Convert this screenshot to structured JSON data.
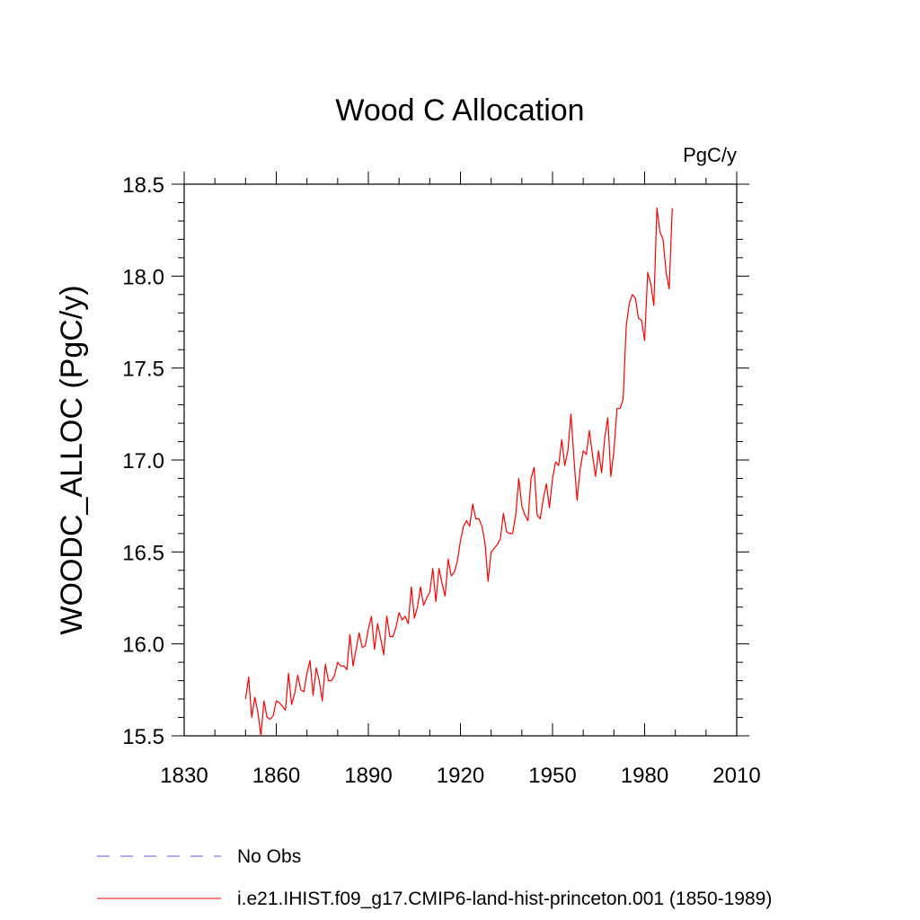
{
  "chart_data": {
    "type": "line",
    "title": "Wood C Allocation",
    "units_label": "PgC/y",
    "xlabel": "",
    "ylabel": "WOODC_ALLOC  (PgC/y)",
    "xlim": [
      1830,
      2010
    ],
    "ylim": [
      15.5,
      18.5
    ],
    "xticks": [
      1830,
      1860,
      1890,
      1920,
      1950,
      1980,
      2010
    ],
    "yticks": [
      15.5,
      16.0,
      16.5,
      17.0,
      17.5,
      18.0,
      18.5
    ],
    "ytick_labels": [
      "15.5",
      "16.0",
      "16.5",
      "17.0",
      "17.5",
      "18.0",
      "18.5"
    ],
    "grid": false,
    "legend_position": "bottom",
    "legend": [
      {
        "label": "No Obs",
        "color": "#6a5acd",
        "style": "dashed"
      },
      {
        "label": "i.e21.IHIST.f09_g17.CMIP6-land-hist-princeton.001 (1850-1989)",
        "color": "#ff0000",
        "style": "solid"
      }
    ],
    "series": [
      {
        "name": "i.e21.IHIST.f09_g17.CMIP6-land-hist-princeton.001 (1850-1989)",
        "color": "#ff0000",
        "x": [
          1850,
          1851,
          1852,
          1853,
          1854,
          1855,
          1856,
          1857,
          1858,
          1859,
          1860,
          1861,
          1862,
          1863,
          1864,
          1865,
          1866,
          1867,
          1868,
          1869,
          1870,
          1871,
          1872,
          1873,
          1874,
          1875,
          1876,
          1877,
          1878,
          1879,
          1880,
          1881,
          1882,
          1883,
          1884,
          1885,
          1886,
          1887,
          1888,
          1889,
          1890,
          1891,
          1892,
          1893,
          1894,
          1895,
          1896,
          1897,
          1898,
          1899,
          1900,
          1901,
          1902,
          1903,
          1904,
          1905,
          1906,
          1907,
          1908,
          1909,
          1910,
          1911,
          1912,
          1913,
          1914,
          1915,
          1916,
          1917,
          1918,
          1919,
          1920,
          1921,
          1922,
          1923,
          1924,
          1925,
          1926,
          1927,
          1928,
          1929,
          1930,
          1931,
          1932,
          1933,
          1934,
          1935,
          1936,
          1937,
          1938,
          1939,
          1940,
          1941,
          1942,
          1943,
          1944,
          1945,
          1946,
          1947,
          1948,
          1949,
          1950,
          1951,
          1952,
          1953,
          1954,
          1955,
          1956,
          1957,
          1958,
          1959,
          1960,
          1961,
          1962,
          1963,
          1964,
          1965,
          1966,
          1967,
          1968,
          1969,
          1970,
          1971,
          1972,
          1973,
          1974,
          1975,
          1976,
          1977,
          1978,
          1979,
          1980,
          1981,
          1982,
          1983,
          1984,
          1985,
          1986,
          1987,
          1988,
          1989
        ],
        "y": [
          15.7,
          15.82,
          15.6,
          15.71,
          15.63,
          15.5,
          15.69,
          15.6,
          15.59,
          15.61,
          15.69,
          15.68,
          15.66,
          15.64,
          15.84,
          15.67,
          15.73,
          15.83,
          15.75,
          15.74,
          15.84,
          15.91,
          15.72,
          15.87,
          15.8,
          15.69,
          15.89,
          15.8,
          15.8,
          15.83,
          15.9,
          15.88,
          15.88,
          15.86,
          16.05,
          15.88,
          15.97,
          16.06,
          15.98,
          15.99,
          16.08,
          16.15,
          15.97,
          16.11,
          16.03,
          15.94,
          16.15,
          16.04,
          16.04,
          16.09,
          16.17,
          16.13,
          16.15,
          16.11,
          16.31,
          16.14,
          16.2,
          16.31,
          16.21,
          16.25,
          16.28,
          16.41,
          16.23,
          16.41,
          16.33,
          16.26,
          16.46,
          16.37,
          16.39,
          16.45,
          16.56,
          16.64,
          16.67,
          16.64,
          16.76,
          16.68,
          16.68,
          16.64,
          16.55,
          16.34,
          16.5,
          16.52,
          16.54,
          16.57,
          16.71,
          16.61,
          16.6,
          16.6,
          16.7,
          16.9,
          16.75,
          16.7,
          16.67,
          16.9,
          16.96,
          16.7,
          16.68,
          16.79,
          16.87,
          16.74,
          16.9,
          16.99,
          16.97,
          17.11,
          16.97,
          17.05,
          17.25,
          17.0,
          16.78,
          16.95,
          17.05,
          17.03,
          17.16,
          17.03,
          16.91,
          17.05,
          16.93,
          17.12,
          17.23,
          16.91,
          17.05,
          17.28,
          17.28,
          17.33,
          17.73,
          17.85,
          17.9,
          17.88,
          17.77,
          17.76,
          17.65,
          18.02,
          17.96,
          17.84,
          18.37,
          18.24,
          18.2,
          18.02,
          17.93,
          18.37
        ]
      }
    ]
  }
}
